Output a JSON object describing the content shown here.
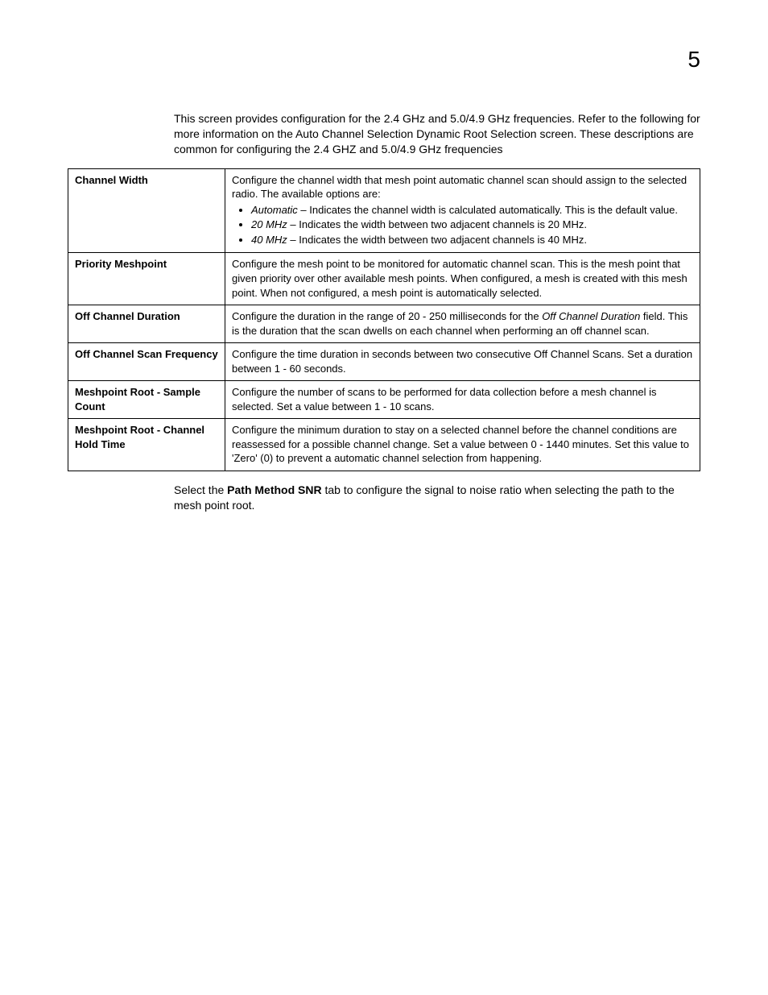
{
  "page_number": "5",
  "intro": "This screen provides configuration for the 2.4 GHz and 5.0/4.9 GHz frequencies. Refer to the following for more information on the Auto Channel Selection Dynamic Root Selection screen. These descriptions are common for configuring the 2.4 GHZ and 5.0/4.9 GHz frequencies",
  "rows": [
    {
      "label": "Channel Width",
      "desc_pre": "Configure the channel width that mesh point automatic channel scan should assign to the selected radio. The available options are:",
      "opts": [
        {
          "term": "Automatic",
          "rest": " – Indicates the channel width is calculated automatically. This is the default value."
        },
        {
          "term": "20 MHz",
          "rest": " – Indicates the width between two adjacent channels is 20 MHz."
        },
        {
          "term": "40 MHz",
          "rest": " – Indicates the width between two adjacent channels is 40 MHz."
        }
      ]
    },
    {
      "label": "Priority Meshpoint",
      "desc": "Configure the mesh point to be monitored for automatic channel scan. This is the mesh point that given priority over other available mesh points. When configured, a mesh is created with this mesh point. When not configured, a mesh point is automatically selected."
    },
    {
      "label": "Off Channel Duration",
      "desc_parts": [
        {
          "t": "Configure the duration in the range of 20 - 250 milliseconds for the "
        },
        {
          "t": "Off Channel Duration",
          "i": true
        },
        {
          "t": " field. This is the duration that the scan dwells on each channel when performing an off channel scan."
        }
      ]
    },
    {
      "label": "Off Channel Scan Frequency",
      "desc": "Configure the time duration in seconds between two consecutive Off Channel Scans. Set a duration between 1 - 60 seconds."
    },
    {
      "label": "Meshpoint Root - Sample Count",
      "desc": "Configure the number of scans to be performed for data collection before a mesh channel is selected. Set a value between 1 - 10 scans."
    },
    {
      "label": "Meshpoint Root - Channel Hold Time",
      "desc": "Configure the minimum duration to stay on a selected channel before the channel conditions are reassessed for a possible channel change. Set a value between 0 - 1440 minutes. Set this value to 'Zero' (0) to prevent a automatic channel selection from happening."
    }
  ],
  "footer": {
    "pre": "Select the ",
    "bold": "Path Method SNR",
    "post": " tab to configure the signal to noise ratio when selecting the path to the mesh point root."
  }
}
